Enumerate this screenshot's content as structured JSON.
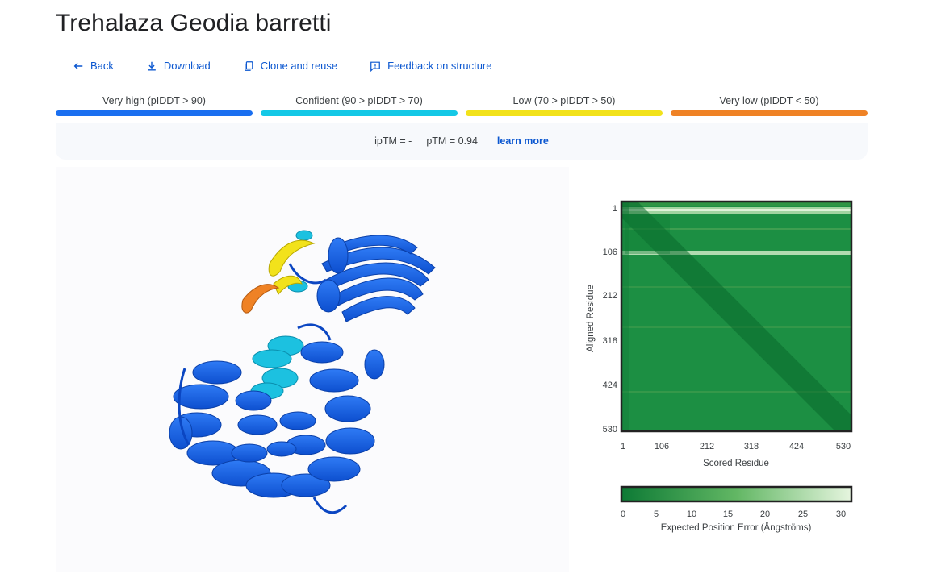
{
  "page": {
    "title": "Trehalaza Geodia barretti"
  },
  "actions": [
    {
      "label": "Back",
      "icon": "arrow-left-icon"
    },
    {
      "label": "Download",
      "icon": "download-icon"
    },
    {
      "label": "Clone and reuse",
      "icon": "copy-icon"
    },
    {
      "label": "Feedback on structure",
      "icon": "feedback-icon"
    }
  ],
  "plddt_legend": [
    {
      "label": "Very high (pIDDT > 90)",
      "color": "#1a6ff0"
    },
    {
      "label": "Confident (90 > pIDDT > 70)",
      "color": "#14c8e6"
    },
    {
      "label": "Low (70 > pIDDT > 50)",
      "color": "#f2e21b"
    },
    {
      "label": "Very low (pIDDT < 50)",
      "color": "#ef8225"
    }
  ],
  "metrics": {
    "iptm": "ipTM = -",
    "ptm": "pTM = 0.94",
    "learn_more": "learn more"
  },
  "pae_plot": {
    "y_axis_title": "Aligned Residue",
    "x_axis_title": "Scored Residue",
    "y_ticks": [
      "1",
      "106",
      "212",
      "318",
      "424",
      "530"
    ],
    "x_ticks": [
      "1",
      "106",
      "212",
      "318",
      "424",
      "530"
    ],
    "colorbar_ticks": [
      "0",
      "5",
      "10",
      "15",
      "20",
      "25",
      "30"
    ],
    "colorbar_title": "Expected Position Error (Ångströms)",
    "colors": {
      "low_error": "#0d7a35",
      "high_error": "#e6f5df"
    }
  }
}
